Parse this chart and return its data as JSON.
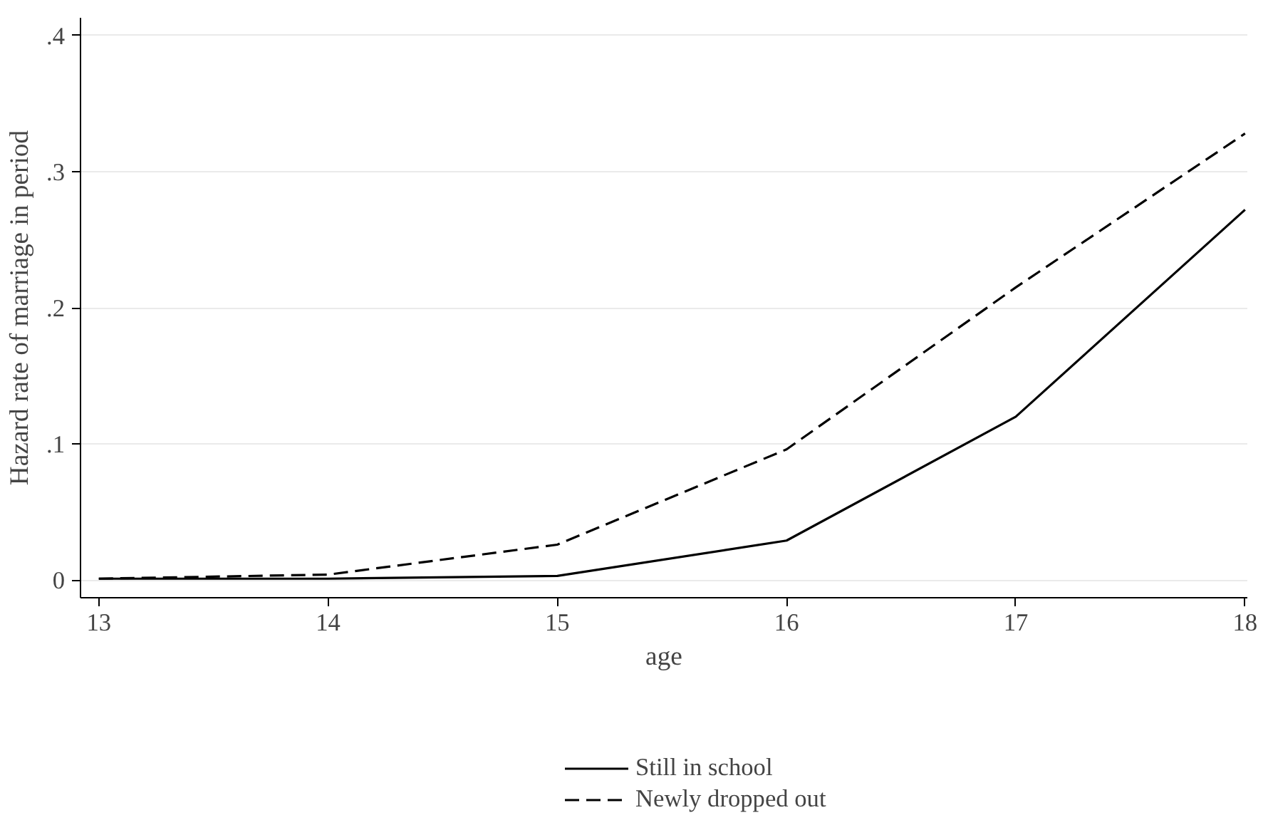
{
  "chart_data": {
    "type": "line",
    "xlabel": "age",
    "ylabel": "Hazard rate of marriage in period",
    "x": [
      13,
      14,
      15,
      16,
      17,
      18
    ],
    "series": [
      {
        "name": "Still in school",
        "color": "#000000",
        "line_style": "solid",
        "values": [
          0.001,
          0.001,
          0.003,
          0.029,
          0.12,
          0.272
        ]
      },
      {
        "name": "Newly dropped out",
        "color": "#000000",
        "line_style": "dashed",
        "values": [
          0.001,
          0.004,
          0.026,
          0.096,
          0.215,
          0.328
        ]
      }
    ],
    "xlim": [
      12.92,
      18.01
    ],
    "ylim": [
      -0.013,
      0.413
    ],
    "xticks": [
      13,
      14,
      15,
      16,
      17,
      18
    ],
    "yticks": [
      {
        "value": 0,
        "label": "0"
      },
      {
        "value": 0.1,
        "label": ".1"
      },
      {
        "value": 0.2,
        "label": ".2"
      },
      {
        "value": 0.3,
        "label": ".3"
      },
      {
        "value": 0.4,
        "label": ".4"
      }
    ],
    "grid": "y",
    "legend": "bottom",
    "marker": "none"
  }
}
